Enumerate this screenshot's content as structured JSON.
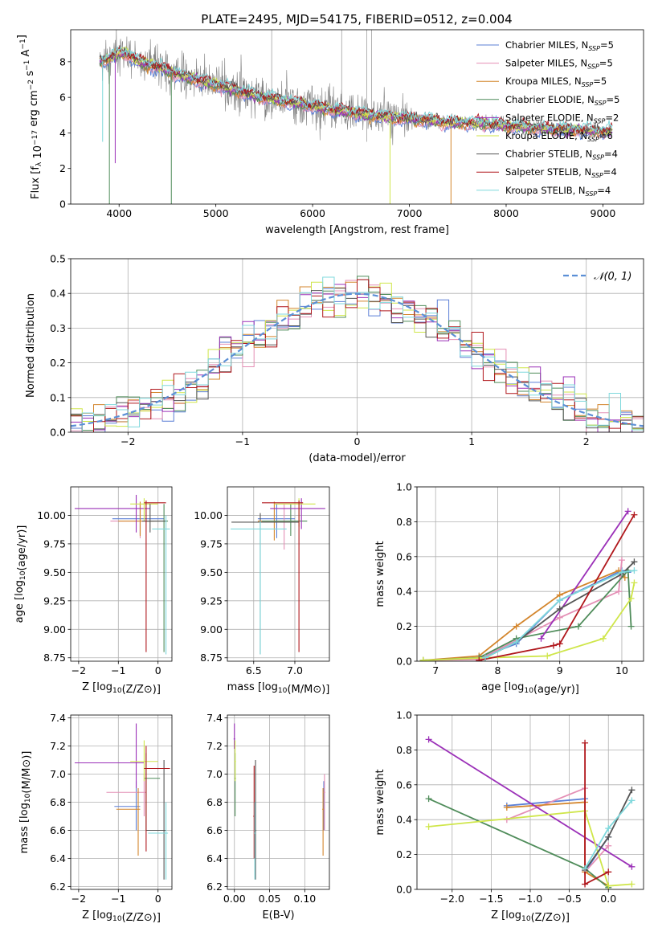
{
  "figure": {
    "title": "PLATE=2495, MJD=54175, FIBERID=0512, z=0.004"
  },
  "models": [
    {
      "name": "Chabrier MILES",
      "n": "5",
      "color": "#5b7fd6"
    },
    {
      "name": "Salpeter MILES",
      "n": "5",
      "color": "#e48fb5"
    },
    {
      "name": "Kroupa MILES",
      "n": "5",
      "color": "#d3852c"
    },
    {
      "name": "Chabrier ELODIE",
      "n": "5",
      "color": "#4f8c5a"
    },
    {
      "name": "Salpeter ELODIE",
      "n": "2",
      "color": "#9b30b8"
    },
    {
      "name": "Kroupa ELODIE",
      "n": "6",
      "color": "#cfe64a"
    },
    {
      "name": "Chabrier STELIB",
      "n": "4",
      "color": "#555555"
    },
    {
      "name": "Salpeter STELIB",
      "n": "4",
      "color": "#b0171c"
    },
    {
      "name": "Kroupa STELIB",
      "n": "4",
      "color": "#7fd8dc"
    }
  ],
  "chart_data": [
    {
      "id": "spectrum",
      "type": "line",
      "xlabel": "wavelength [Angstrom, rest frame]",
      "ylabel": "Flux [f_λ 10^-17 erg cm^-2 s^-1 A^-1]",
      "xlim": [
        3500,
        9420
      ],
      "ylim": [
        0,
        9.8
      ],
      "xticks": [
        "4000",
        "5000",
        "6000",
        "7000",
        "8000",
        "9000"
      ],
      "yticks": [
        "0",
        "2",
        "4",
        "6",
        "8"
      ],
      "grid": false,
      "legend": "top-right",
      "legend_entries": [
        "Chabrier MILES, N_SSP=5",
        "Salpeter MILES, N_SSP=5",
        "Kroupa MILES, N_SSP=5",
        "Chabrier ELODIE, N_SSP=5",
        "Salpeter ELODIE, N_SSP=2",
        "Kroupa ELODIE, N_SSP=6",
        "Chabrier STELIB, N_SSP=4",
        "Salpeter STELIB, N_SSP=4",
        "Kroupa STELIB, N_SSP=4"
      ],
      "data_color": "#808080",
      "continuum_x": [
        3800,
        3900,
        4000,
        4100,
        4200,
        4400,
        4600,
        4800,
        5000,
        5200,
        5400,
        5600,
        5800,
        6000,
        6200,
        6400,
        6600,
        6800,
        7000,
        7200,
        7400,
        7600,
        7800,
        8000,
        8200,
        8400,
        8600,
        8800,
        9000,
        9100
      ],
      "continuum_y": [
        8.0,
        8.2,
        8.5,
        8.4,
        8.0,
        7.7,
        7.3,
        7.0,
        6.7,
        6.4,
        6.1,
        5.9,
        5.7,
        5.5,
        5.3,
        5.15,
        5.0,
        4.9,
        4.8,
        4.7,
        4.6,
        4.55,
        4.5,
        4.4,
        4.3,
        4.25,
        4.2,
        4.15,
        4.1,
        4.1
      ]
    },
    {
      "id": "residuals",
      "type": "histogram",
      "xlabel": "(data-model)/error",
      "ylabel": "Normed distribution",
      "xlim": [
        -2.5,
        2.5
      ],
      "ylim": [
        0,
        0.5
      ],
      "xticks": [
        "−2",
        "−1",
        "0",
        "1",
        "2"
      ],
      "yticks": [
        "0.0",
        "0.1",
        "0.2",
        "0.3",
        "0.4",
        "0.5"
      ],
      "grid": true,
      "legend": "top-right",
      "legend_entries": [
        "𝒩(0, 1)"
      ],
      "normal_color": "#5b8fd6",
      "bin_width": 0.1
    },
    {
      "id": "age-vs-Z",
      "type": "errorbar",
      "xlabel": "Z [log10(Z/Z⊙)]",
      "ylabel": "age  [log10(age/yr)]",
      "xlim": [
        -2.2,
        0.35
      ],
      "ylim": [
        8.72,
        10.25
      ],
      "xticks": [
        "−2",
        "−1",
        "0"
      ],
      "yticks": [
        "8.75",
        "9.00",
        "9.25",
        "9.50",
        "9.75",
        "10.00"
      ],
      "grid": true,
      "points": [
        {
          "model": 0,
          "x": -0.45,
          "x_lo": -1.15,
          "x_hi": 0.15,
          "y": 9.97,
          "y_lo": 9.83,
          "y_hi": 10.1
        },
        {
          "model": 1,
          "x": -0.45,
          "x_lo": -1.2,
          "x_hi": 0.05,
          "y": 9.95,
          "y_lo": 9.8,
          "y_hi": 10.1
        },
        {
          "model": 2,
          "x": -0.45,
          "x_lo": -1.0,
          "x_hi": -0.1,
          "y": 9.95,
          "y_lo": 9.82,
          "y_hi": 10.12
        },
        {
          "model": 3,
          "x": 0.15,
          "x_lo": -0.3,
          "x_hi": 0.25,
          "y": 9.95,
          "y_lo": 8.8,
          "y_hi": 10.1
        },
        {
          "model": 4,
          "x": -0.55,
          "x_lo": -2.1,
          "x_hi": -0.2,
          "y": 10.06,
          "y_lo": 9.85,
          "y_hi": 10.18
        },
        {
          "model": 5,
          "x": -0.35,
          "x_lo": -0.7,
          "x_hi": 0.0,
          "y": 10.1,
          "y_lo": 9.95,
          "y_hi": 10.15
        },
        {
          "model": 6,
          "x": -0.2,
          "x_lo": -0.4,
          "x_hi": 0.2,
          "y": 9.95,
          "y_lo": 9.85,
          "y_hi": 10.1
        },
        {
          "model": 7,
          "x": -0.3,
          "x_lo": -0.35,
          "x_hi": 0.2,
          "y": 10.11,
          "y_lo": 8.8,
          "y_hi": 10.13
        },
        {
          "model": 8,
          "x": 0.2,
          "x_lo": -0.15,
          "x_hi": 0.3,
          "y": 9.88,
          "y_lo": 8.78,
          "y_hi": 10.0
        }
      ]
    },
    {
      "id": "age-vs-mass",
      "type": "errorbar",
      "xlabel": "mass [log10(M/M⊙)]",
      "ylabel": "",
      "xlim": [
        6.18,
        7.42
      ],
      "ylim": [
        8.72,
        10.25
      ],
      "xticks": [
        "6.5",
        "7.0"
      ],
      "yticks": [
        "8.75",
        "9.00",
        "9.25",
        "9.50",
        "9.75",
        "10.00"
      ],
      "grid": true,
      "points": [
        {
          "model": 0,
          "x": 6.78,
          "x_lo": 6.55,
          "x_hi": 7.0,
          "y": 9.97,
          "y_lo": 9.8,
          "y_hi": 10.1
        },
        {
          "model": 1,
          "x": 6.87,
          "x_lo": 6.6,
          "x_hi": 7.05,
          "y": 9.95,
          "y_lo": 9.7,
          "y_hi": 10.1
        },
        {
          "model": 2,
          "x": 6.75,
          "x_lo": 6.55,
          "x_hi": 7.0,
          "y": 9.95,
          "y_lo": 9.78,
          "y_hi": 10.12
        },
        {
          "model": 3,
          "x": 6.95,
          "x_lo": 6.6,
          "x_hi": 7.15,
          "y": 9.95,
          "y_lo": 9.82,
          "y_hi": 10.1
        },
        {
          "model": 4,
          "x": 7.08,
          "x_lo": 6.7,
          "x_hi": 7.37,
          "y": 10.06,
          "y_lo": 9.88,
          "y_hi": 10.15
        },
        {
          "model": 5,
          "x": 7.05,
          "x_lo": 6.75,
          "x_hi": 7.25,
          "y": 10.1,
          "y_lo": 9.9,
          "y_hi": 10.15
        },
        {
          "model": 6,
          "x": 6.58,
          "x_lo": 6.23,
          "x_hi": 7.05,
          "y": 9.94,
          "y_lo": 8.78,
          "y_hi": 10.02
        },
        {
          "model": 7,
          "x": 7.05,
          "x_lo": 6.6,
          "x_hi": 7.1,
          "y": 10.11,
          "y_lo": 8.8,
          "y_hi": 10.13
        },
        {
          "model": 8,
          "x": 6.58,
          "x_lo": 6.22,
          "x_hi": 6.9,
          "y": 9.88,
          "y_lo": 8.78,
          "y_hi": 9.95
        }
      ]
    },
    {
      "id": "mass-weight-vs-age",
      "type": "line",
      "xlabel": "age  [log10(age/yr)]",
      "ylabel": "mass weight",
      "xlim": [
        6.7,
        10.35
      ],
      "ylim": [
        0,
        1.0
      ],
      "xticks": [
        "7",
        "8",
        "9",
        "10"
      ],
      "yticks": [
        "0.0",
        "0.2",
        "0.4",
        "0.6",
        "0.8",
        "1.0"
      ],
      "grid": true,
      "series": [
        {
          "model": 0,
          "x": [
            6.8,
            7.7,
            8.3,
            9.0,
            10.0,
            10.1
          ],
          "y": [
            0.005,
            0.02,
            0.1,
            0.35,
            0.52,
            0.51
          ]
        },
        {
          "model": 1,
          "x": [
            6.8,
            7.7,
            8.3,
            9.0,
            9.95,
            10.0
          ],
          "y": [
            0.005,
            0.01,
            0.12,
            0.25,
            0.4,
            0.58
          ]
        },
        {
          "model": 2,
          "x": [
            6.8,
            7.7,
            8.3,
            9.0,
            9.95,
            10.05
          ],
          "y": [
            0.005,
            0.03,
            0.2,
            0.38,
            0.52,
            0.48
          ]
        },
        {
          "model": 3,
          "x": [
            6.8,
            7.7,
            8.3,
            9.3,
            10.1,
            10.15
          ],
          "y": [
            0.005,
            0.02,
            0.13,
            0.2,
            0.52,
            0.2
          ]
        },
        {
          "model": 4,
          "x": [
            8.7,
            10.1
          ],
          "y": [
            0.13,
            0.86
          ]
        },
        {
          "model": 5,
          "x": [
            6.8,
            7.8,
            8.8,
            9.7,
            10.15,
            10.2
          ],
          "y": [
            0.005,
            0.02,
            0.03,
            0.13,
            0.36,
            0.45
          ]
        },
        {
          "model": 6,
          "x": [
            7.8,
            8.3,
            9.0,
            10.0,
            10.2
          ],
          "y": [
            0.02,
            0.11,
            0.3,
            0.5,
            0.57
          ]
        },
        {
          "model": 7,
          "x": [
            7.7,
            8.9,
            9.0,
            10.2
          ],
          "y": [
            0.005,
            0.09,
            0.1,
            0.84
          ]
        },
        {
          "model": 8,
          "x": [
            7.8,
            8.3,
            9.0,
            10.0,
            10.2
          ],
          "y": [
            0.02,
            0.11,
            0.35,
            0.51,
            0.52
          ]
        }
      ]
    },
    {
      "id": "mass-vs-Z",
      "type": "errorbar",
      "xlabel": "Z [log10(Z/Z⊙)]",
      "ylabel": "mass [log10(M/M⊙)]",
      "xlim": [
        -2.2,
        0.35
      ],
      "ylim": [
        6.18,
        7.42
      ],
      "xticks": [
        "−2",
        "−1",
        "0"
      ],
      "yticks": [
        "6.2",
        "6.4",
        "6.6",
        "6.8",
        "7.0",
        "7.2",
        "7.4"
      ],
      "grid": true,
      "points": [
        {
          "model": 0,
          "x": -0.55,
          "x_lo": -1.1,
          "x_hi": -0.45,
          "y": 6.77,
          "y_lo": 6.6,
          "y_hi": 6.95
        },
        {
          "model": 1,
          "x": -0.35,
          "x_lo": -1.3,
          "x_hi": -0.3,
          "y": 6.87,
          "y_lo": 6.7,
          "y_hi": 7.0
        },
        {
          "model": 2,
          "x": -0.5,
          "x_lo": -1.05,
          "x_hi": -0.45,
          "y": 6.75,
          "y_lo": 6.42,
          "y_hi": 6.9
        },
        {
          "model": 3,
          "x": -0.3,
          "x_lo": -0.35,
          "x_hi": 0.05,
          "y": 6.97,
          "y_lo": 6.6,
          "y_hi": 7.15
        },
        {
          "model": 4,
          "x": -0.55,
          "x_lo": -2.1,
          "x_hi": -0.35,
          "y": 7.08,
          "y_lo": 6.9,
          "y_hi": 7.36
        },
        {
          "model": 5,
          "x": -0.35,
          "x_lo": -0.7,
          "x_hi": 0.0,
          "y": 7.09,
          "y_lo": 6.95,
          "y_hi": 7.24
        },
        {
          "model": 6,
          "x": 0.15,
          "x_lo": -0.3,
          "x_hi": 0.2,
          "y": 6.6,
          "y_lo": 6.25,
          "y_hi": 7.1
        },
        {
          "model": 7,
          "x": -0.3,
          "x_lo": -0.35,
          "x_hi": 0.3,
          "y": 7.04,
          "y_lo": 6.45,
          "y_hi": 7.2
        },
        {
          "model": 8,
          "x": 0.2,
          "x_lo": -0.25,
          "x_hi": 0.25,
          "y": 6.58,
          "y_lo": 6.25,
          "y_hi": 6.8
        }
      ]
    },
    {
      "id": "mass-vs-EBV",
      "type": "errorbar",
      "xlabel": "E(B-V)",
      "ylabel": "",
      "xlim": [
        -0.01,
        0.135
      ],
      "ylim": [
        6.18,
        7.42
      ],
      "xticks": [
        "0.00",
        "0.05",
        "0.10"
      ],
      "yticks": [
        "6.2",
        "6.4",
        "6.6",
        "6.8",
        "7.0",
        "7.2",
        "7.4"
      ],
      "grid": true,
      "points": [
        {
          "model": 0,
          "x": 0.127,
          "y": 6.77,
          "y_lo": 6.6,
          "y_hi": 6.95
        },
        {
          "model": 1,
          "x": 0.128,
          "y": 6.87,
          "y_lo": 6.6,
          "y_hi": 7.0
        },
        {
          "model": 2,
          "x": 0.126,
          "y": 6.75,
          "y_lo": 6.42,
          "y_hi": 6.9
        },
        {
          "model": 3,
          "x": 0.001,
          "y": 6.97,
          "y_lo": 6.7,
          "y_hi": 7.15
        },
        {
          "model": 4,
          "x": 0.0,
          "y": 7.25,
          "y_lo": 7.18,
          "y_hi": 7.36
        },
        {
          "model": 5,
          "x": 0.001,
          "y": 7.09,
          "y_lo": 6.95,
          "y_hi": 7.24
        },
        {
          "model": 6,
          "x": 0.03,
          "y": 6.6,
          "y_lo": 6.25,
          "y_hi": 7.1
        },
        {
          "model": 7,
          "x": 0.028,
          "y": 6.7,
          "y_lo": 6.4,
          "y_hi": 7.06
        },
        {
          "model": 8,
          "x": 0.029,
          "y": 6.58,
          "y_lo": 6.25,
          "y_hi": 6.8
        }
      ]
    },
    {
      "id": "mass-weight-vs-Z",
      "type": "line",
      "xlabel": "Z [log10(Z/Z⊙)]",
      "ylabel": "mass weight",
      "xlim": [
        -2.45,
        0.45
      ],
      "ylim": [
        0,
        1.0
      ],
      "xticks": [
        "−2.0",
        "−1.5",
        "−1.0",
        "−0.5",
        "0.0"
      ],
      "yticks": [
        "0.0",
        "0.2",
        "0.4",
        "0.6",
        "0.8",
        "1.0"
      ],
      "grid": true,
      "series": [
        {
          "model": 0,
          "x": [
            -1.3,
            -0.3,
            -0.3,
            0.0
          ],
          "y": [
            0.48,
            0.52,
            0.1,
            0.3
          ]
        },
        {
          "model": 1,
          "x": [
            -1.3,
            -0.3,
            -0.3,
            0.0
          ],
          "y": [
            0.4,
            0.58,
            0.1,
            0.25
          ]
        },
        {
          "model": 2,
          "x": [
            -1.3,
            -0.3,
            -0.3,
            0.0
          ],
          "y": [
            0.47,
            0.5,
            0.1,
            0.02
          ]
        },
        {
          "model": 3,
          "x": [
            -2.3,
            -0.3,
            0.0
          ],
          "y": [
            0.52,
            0.12,
            0.01
          ]
        },
        {
          "model": 4,
          "x": [
            -2.3,
            0.3
          ],
          "y": [
            0.86,
            0.13
          ]
        },
        {
          "model": 5,
          "x": [
            -2.3,
            -0.3,
            0.0,
            0.3
          ],
          "y": [
            0.36,
            0.45,
            0.02,
            0.03
          ]
        },
        {
          "model": 6,
          "x": [
            -0.3,
            0.0,
            0.3
          ],
          "y": [
            0.11,
            0.3,
            0.57
          ]
        },
        {
          "model": 7,
          "x": [
            -0.3,
            -0.3,
            0.0
          ],
          "y": [
            0.84,
            0.03,
            0.1
          ]
        },
        {
          "model": 8,
          "x": [
            -0.3,
            0.0,
            0.3
          ],
          "y": [
            0.12,
            0.35,
            0.51
          ]
        }
      ]
    }
  ]
}
